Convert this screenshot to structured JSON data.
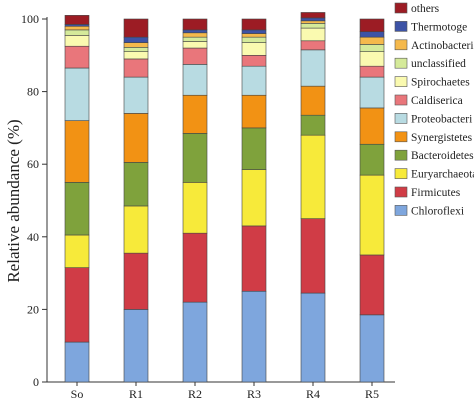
{
  "chart_data": {
    "type": "bar",
    "stacked": true,
    "categories": [
      "So",
      "R1",
      "R2",
      "R3",
      "R4",
      "R5"
    ],
    "ylabel": "Relative abundance (%)",
    "xlabel": "",
    "title": "",
    "ylim": [
      0,
      100
    ],
    "yticks": [
      0,
      20,
      40,
      60,
      80,
      100
    ],
    "grid": false,
    "legend_position": "right",
    "series": [
      {
        "name": "Chloroflexi",
        "color": "#7ea6dd",
        "values": [
          11,
          20,
          22,
          25,
          24.5,
          18.5
        ]
      },
      {
        "name": "Firmicutes",
        "color": "#d03c46",
        "values": [
          20.5,
          15.5,
          19,
          18,
          20.5,
          16.5
        ]
      },
      {
        "name": "Euryarchaeota",
        "color": "#f7ea3a",
        "values": [
          9,
          13,
          14,
          15.5,
          23,
          22
        ]
      },
      {
        "name": "Bacteroidetes",
        "color": "#7fa23c",
        "values": [
          14.5,
          12,
          13.5,
          11.5,
          5.5,
          8.5
        ]
      },
      {
        "name": "Synergistetes",
        "color": "#f29214",
        "values": [
          17,
          13.5,
          10.5,
          9,
          8,
          10
        ]
      },
      {
        "name": "Proteobacteria",
        "color": "#b8dbe2",
        "values": [
          14.5,
          10,
          8.5,
          8,
          10,
          8.5
        ]
      },
      {
        "name": "Caldiserica",
        "color": "#e9767b",
        "values": [
          6,
          5,
          4.5,
          3,
          2.5,
          3
        ]
      },
      {
        "name": "Spirochaetes",
        "color": "#fafab0",
        "values": [
          3,
          2,
          1.8,
          3.5,
          3.5,
          4
        ]
      },
      {
        "name": "unclassified",
        "color": "#d5ea9a",
        "values": [
          1.5,
          1.2,
          1.2,
          1.5,
          1.3,
          2
        ]
      },
      {
        "name": "Actinobacteria",
        "color": "#f5b94c",
        "values": [
          1,
          1.3,
          1.2,
          1,
          0.7,
          2
        ]
      },
      {
        "name": "Thermotoge",
        "color": "#3d53a6",
        "values": [
          0.5,
          1.5,
          0.8,
          1,
          0.8,
          1.5
        ]
      },
      {
        "name": "others",
        "color": "#9c1c24",
        "values": [
          2.5,
          5,
          3,
          3,
          1.5,
          3.5
        ]
      }
    ],
    "legend_order": [
      "others",
      "Thermotoge",
      "Actinobacteria",
      "unclassified",
      "Spirochaetes",
      "Caldiserica",
      "Proteobacteria",
      "Synergistetes",
      "Bacteroidetes",
      "Euryarchaeota",
      "Firmicutes",
      "Chloroflexi"
    ],
    "legend_labels": {
      "others": "others",
      "Thermotoge": "Thermotoge",
      "Actinobacteria": "Actinobacteria",
      "unclassified": "unclassified",
      "Spirochaetes": "Spirochaetes",
      "Caldiserica": "Caldiserica",
      "Proteobacteria": "Proteobacteri",
      "Synergistetes": "Synergistetes",
      "Bacteroidetes": "Bacteroidetes",
      "Euryarchaeota": "Euryarchaeota",
      "Firmicutes": "Firmicutes",
      "Chloroflexi": "Chloroflexi"
    }
  }
}
